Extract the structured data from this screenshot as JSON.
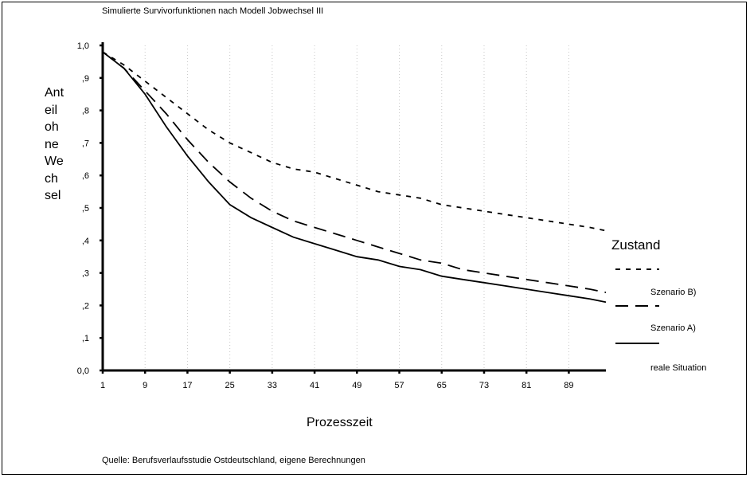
{
  "chart_data": {
    "type": "line",
    "title": "Simulierte Survivorfunktionen nach Modell Jobwechsel III",
    "ylabel_lines": [
      "Ant",
      "eil",
      "oh",
      "ne",
      "We",
      "ch",
      "sel"
    ],
    "xlabel": "Prozesszeit",
    "source": "Quelle: Berufsverlaufsstudie Ostdeutschland, eigene Berechnungen",
    "xlim": [
      1,
      96
    ],
    "ylim": [
      0,
      1
    ],
    "x_ticks": [
      "1",
      "9",
      "17",
      "25",
      "33",
      "41",
      "49",
      "57",
      "65",
      "73",
      "81",
      "89"
    ],
    "y_ticks": [
      "0,0",
      ",1",
      ",2",
      ",3",
      ",4",
      ",5",
      ",6",
      ",7",
      ",8",
      ",9",
      "1,0"
    ],
    "grid": "vertical dotted",
    "legend": {
      "title": "Zustand",
      "placement": "right",
      "labels": [
        "Szenario B)",
        "Szenario A)",
        "reale Situation"
      ]
    },
    "series": [
      {
        "style": "dotted",
        "x": [
          1,
          5,
          9,
          13,
          17,
          21,
          25,
          29,
          33,
          37,
          41,
          45,
          49,
          53,
          57,
          61,
          65,
          69,
          73,
          77,
          81,
          85,
          89,
          93,
          96
        ],
        "y": [
          0.98,
          0.94,
          0.89,
          0.84,
          0.79,
          0.74,
          0.7,
          0.67,
          0.64,
          0.62,
          0.61,
          0.59,
          0.57,
          0.55,
          0.54,
          0.53,
          0.51,
          0.5,
          0.49,
          0.48,
          0.47,
          0.46,
          0.45,
          0.44,
          0.43
        ]
      },
      {
        "style": "dashed",
        "x": [
          1,
          5,
          9,
          13,
          17,
          21,
          25,
          29,
          33,
          37,
          41,
          45,
          49,
          53,
          57,
          61,
          65,
          69,
          73,
          77,
          81,
          85,
          89,
          93,
          96
        ],
        "y": [
          0.98,
          0.93,
          0.86,
          0.79,
          0.71,
          0.64,
          0.58,
          0.53,
          0.49,
          0.46,
          0.44,
          0.42,
          0.4,
          0.38,
          0.36,
          0.34,
          0.33,
          0.31,
          0.3,
          0.29,
          0.28,
          0.27,
          0.26,
          0.25,
          0.24
        ]
      },
      {
        "style": "solid",
        "x": [
          1,
          5,
          9,
          13,
          17,
          21,
          25,
          29,
          33,
          37,
          41,
          45,
          49,
          53,
          57,
          61,
          65,
          69,
          73,
          77,
          81,
          85,
          89,
          93,
          96
        ],
        "y": [
          0.98,
          0.93,
          0.85,
          0.75,
          0.66,
          0.58,
          0.51,
          0.47,
          0.44,
          0.41,
          0.39,
          0.37,
          0.35,
          0.34,
          0.32,
          0.31,
          0.29,
          0.28,
          0.27,
          0.26,
          0.25,
          0.24,
          0.23,
          0.22,
          0.21
        ]
      }
    ]
  }
}
